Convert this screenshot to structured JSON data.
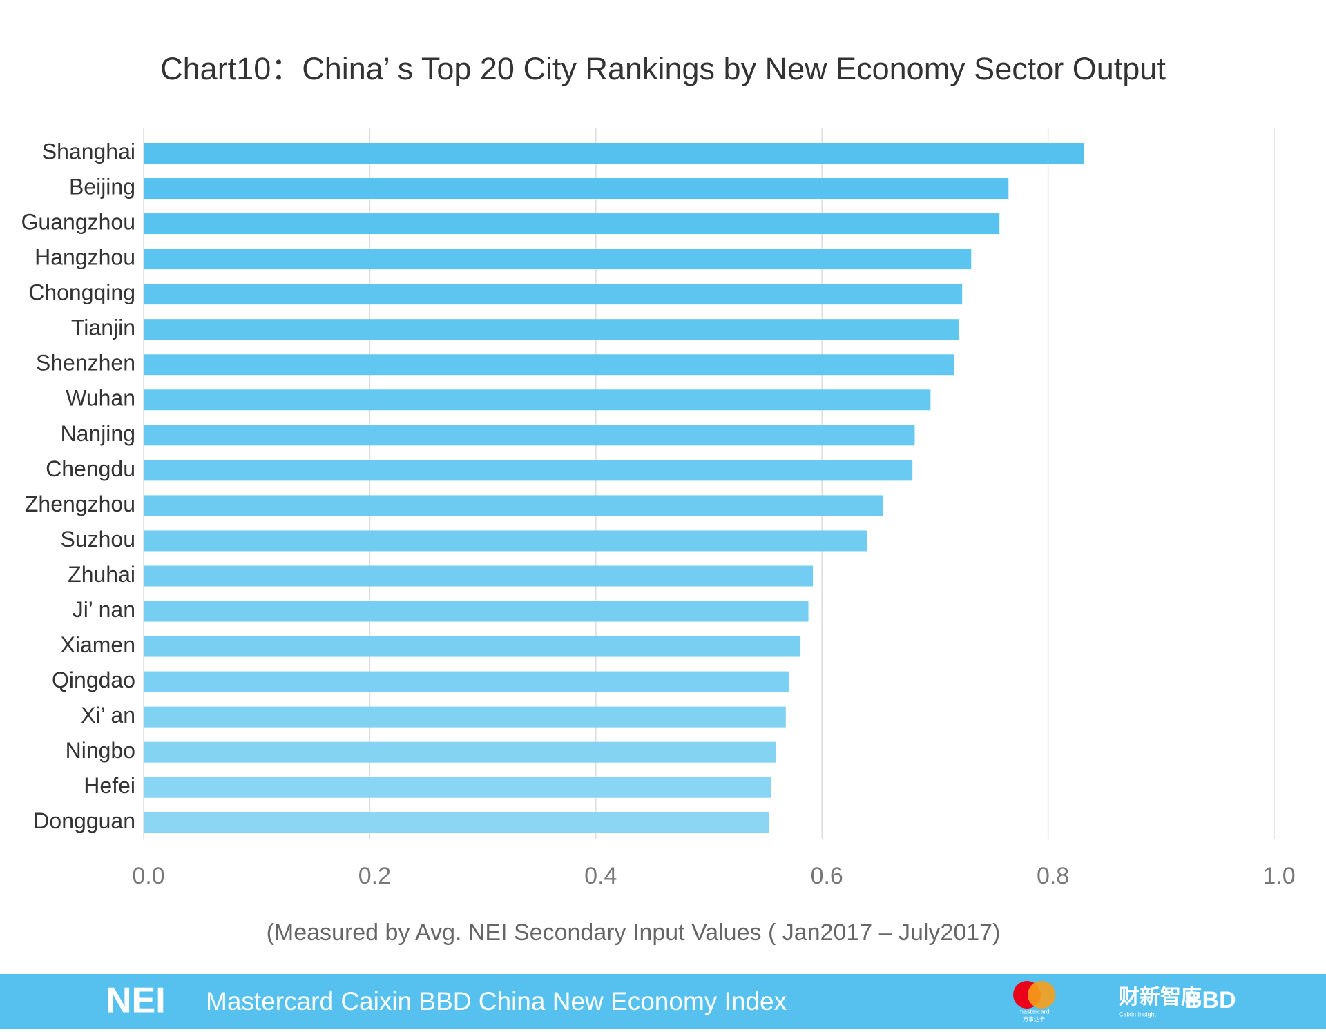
{
  "chart_data": {
    "type": "barh",
    "title": "Chart10：China’ s Top 20 City Rankings by New Economy Sector Output",
    "xlabel": "(Measured by Avg. NEI Secondary Input Values ( Jan2017 – July2017)",
    "categories": [
      "Shanghai",
      "Beijing",
      "Guangzhou",
      "Hangzhou",
      "Chongqing",
      "Tianjin",
      "Shenzhen",
      "Wuhan",
      "Nanjing",
      "Chengdu",
      "Zhengzhou",
      "Suzhou",
      "Zhuhai",
      "Ji’ nan",
      "Xiamen",
      "Qingdao",
      "Xi’ an",
      "Ningbo",
      "Hefei",
      "Dongguan"
    ],
    "values": [
      0.832,
      0.765,
      0.757,
      0.732,
      0.724,
      0.721,
      0.717,
      0.696,
      0.682,
      0.68,
      0.654,
      0.64,
      0.592,
      0.588,
      0.581,
      0.571,
      0.568,
      0.559,
      0.555,
      0.553
    ],
    "colors": [
      "#55c1ef",
      "#57c2ef",
      "#59c3ef",
      "#5bc4ef",
      "#5dc5f0",
      "#5fc6f0",
      "#62c7f0",
      "#64c8f0",
      "#67c9f1",
      "#6acaf1",
      "#6dcbf1",
      "#70ccf1",
      "#73cdf2",
      "#76cef2",
      "#79cff2",
      "#7cd0f3",
      "#80d2f3",
      "#84d3f3",
      "#88d5f4",
      "#8cd6f4"
    ],
    "xlim": [
      0,
      1
    ],
    "xticks": [
      {
        "value": 0,
        "label": "0.0"
      },
      0.2,
      0.4,
      0.6,
      0.8,
      {
        "value": 1,
        "label": "1.0"
      }
    ],
    "grid": true
  },
  "footer": {
    "logo": "NEI",
    "title": "Mastercard Caixin BBD China New Economy Index",
    "mastercard": "mastercard",
    "mastercard_cn": "万事达卡",
    "caixin": "财新智库",
    "caixin_en": "Caixin Insight",
    "bbd": "BBD"
  }
}
